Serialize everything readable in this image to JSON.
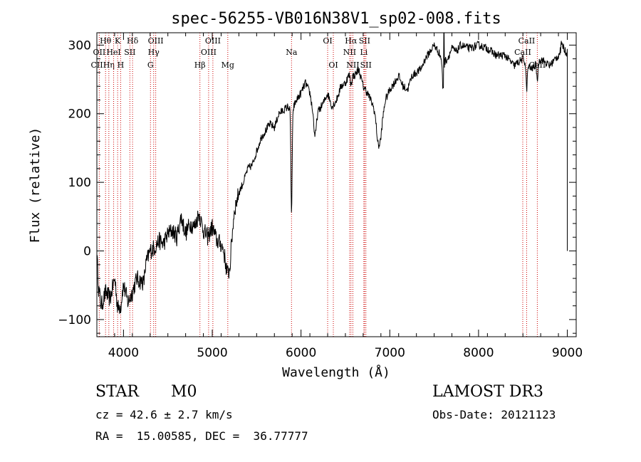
{
  "chart_data": {
    "type": "line",
    "title": "spec-56255-VB016N38V1_sp02-008.fits",
    "xlabel": "Wavelength (Å)",
    "ylabel": "Flux (relative)",
    "xlim": [
      3700,
      9100
    ],
    "ylim": [
      -125,
      318
    ],
    "xticks": [
      4000,
      5000,
      6000,
      7000,
      8000,
      9000
    ],
    "yticks": [
      -100,
      0,
      100,
      200,
      300
    ],
    "grid": false,
    "legend": "none",
    "colors": {
      "spectrum": "#000000",
      "lines": "#cc0000"
    },
    "spectrum_anchors": [
      [
        3700,
        -5
      ],
      [
        3720,
        -55
      ],
      [
        3750,
        -80
      ],
      [
        3800,
        -60
      ],
      [
        3850,
        -70
      ],
      [
        3900,
        -40
      ],
      [
        3950,
        -65
      ],
      [
        4000,
        -50
      ],
      [
        4050,
        -75
      ],
      [
        4100,
        -60
      ],
      [
        4150,
        -40
      ],
      [
        4200,
        -45
      ],
      [
        4250,
        -20
      ],
      [
        4300,
        0
      ],
      [
        4350,
        5
      ],
      [
        4400,
        15
      ],
      [
        4450,
        10
      ],
      [
        4500,
        25
      ],
      [
        4550,
        30
      ],
      [
        4600,
        20
      ],
      [
        4650,
        50
      ],
      [
        4700,
        25
      ],
      [
        4750,
        40
      ],
      [
        4800,
        35
      ],
      [
        4850,
        55
      ],
      [
        4900,
        30
      ],
      [
        4950,
        20
      ],
      [
        5000,
        35
      ],
      [
        5050,
        15
      ],
      [
        5100,
        10
      ],
      [
        5150,
        0
      ],
      [
        5200,
        -5
      ],
      [
        5250,
        60
      ],
      [
        5300,
        85
      ],
      [
        5350,
        100
      ],
      [
        5400,
        120
      ],
      [
        5450,
        125
      ],
      [
        5500,
        145
      ],
      [
        5550,
        165
      ],
      [
        5600,
        175
      ],
      [
        5650,
        185
      ],
      [
        5700,
        180
      ],
      [
        5750,
        200
      ],
      [
        5800,
        205
      ],
      [
        5850,
        210
      ],
      [
        5900,
        205
      ],
      [
        5950,
        220
      ],
      [
        6000,
        230
      ],
      [
        6050,
        245
      ],
      [
        6100,
        230
      ],
      [
        6150,
        190
      ],
      [
        6200,
        205
      ],
      [
        6250,
        215
      ],
      [
        6300,
        230
      ],
      [
        6350,
        210
      ],
      [
        6400,
        220
      ],
      [
        6450,
        240
      ],
      [
        6500,
        245
      ],
      [
        6550,
        260
      ],
      [
        6600,
        255
      ],
      [
        6650,
        265
      ],
      [
        6700,
        240
      ],
      [
        6750,
        230
      ],
      [
        6800,
        215
      ],
      [
        6850,
        200
      ],
      [
        6900,
        175
      ],
      [
        6950,
        220
      ],
      [
        7000,
        235
      ],
      [
        7050,
        245
      ],
      [
        7100,
        255
      ],
      [
        7150,
        240
      ],
      [
        7200,
        235
      ],
      [
        7250,
        255
      ],
      [
        7300,
        260
      ],
      [
        7350,
        265
      ],
      [
        7400,
        280
      ],
      [
        7450,
        290
      ],
      [
        7500,
        300
      ],
      [
        7550,
        290
      ],
      [
        7600,
        275
      ],
      [
        7650,
        280
      ],
      [
        7700,
        295
      ],
      [
        7750,
        290
      ],
      [
        7800,
        300
      ],
      [
        7900,
        295
      ],
      [
        8000,
        300
      ],
      [
        8100,
        295
      ],
      [
        8200,
        285
      ],
      [
        8300,
        285
      ],
      [
        8400,
        270
      ],
      [
        8500,
        280
      ],
      [
        8550,
        270
      ],
      [
        8600,
        265
      ],
      [
        8700,
        280
      ],
      [
        8800,
        270
      ],
      [
        8900,
        285
      ],
      [
        8950,
        300
      ],
      [
        8980,
        290
      ]
    ],
    "absorption_features": [
      [
        3934,
        -25,
        12
      ],
      [
        3968,
        -20,
        12
      ],
      [
        4227,
        -15,
        10
      ],
      [
        5175,
        -30,
        25
      ],
      [
        5893,
        -150,
        7
      ],
      [
        6160,
        -25,
        12
      ],
      [
        6563,
        -15,
        10
      ],
      [
        6870,
        -35,
        20
      ],
      [
        7600,
        -40,
        8
      ],
      [
        8542,
        -35,
        7
      ],
      [
        8662,
        -25,
        7
      ]
    ],
    "spikes": [
      [
        7610,
        320
      ],
      [
        8930,
        302
      ]
    ],
    "end_drop": {
      "x": 9000,
      "y": 0
    },
    "noise_amplitude": 6,
    "line_markers": [
      {
        "label": "Hθ",
        "x": 3798,
        "row": 0
      },
      {
        "label": "OII",
        "x": 3727,
        "row": 1
      },
      {
        "label": "CII",
        "x": 3700,
        "row": 2
      },
      {
        "label": "K",
        "x": 3934,
        "row": 0
      },
      {
        "label": "H",
        "x": 3968,
        "row": 2
      },
      {
        "label": "Hη",
        "x": 3835,
        "row": 2
      },
      {
        "label": "HeI",
        "x": 3889,
        "row": 1
      },
      {
        "label": "SII",
        "x": 4072,
        "row": 1
      },
      {
        "label": "Hδ",
        "x": 4102,
        "row": 0
      },
      {
        "label": "OIII",
        "x": 4363,
        "row": 0
      },
      {
        "label": "Hγ",
        "x": 4340,
        "row": 1
      },
      {
        "label": "G",
        "x": 4304,
        "row": 2
      },
      {
        "label": "Hβ",
        "x": 4861,
        "row": 2
      },
      {
        "label": "OIII",
        "x": 5007,
        "row": 0
      },
      {
        "label": "OIII",
        "x": 4959,
        "row": 1
      },
      {
        "label": "Mg",
        "x": 5175,
        "row": 2
      },
      {
        "label": "Na",
        "x": 5893,
        "row": 1
      },
      {
        "label": "OI",
        "x": 6300,
        "row": 0
      },
      {
        "label": "OI",
        "x": 6364,
        "row": 2
      },
      {
        "label": "Hα",
        "x": 6563,
        "row": 0
      },
      {
        "label": "SII",
        "x": 6716,
        "row": 0
      },
      {
        "label": "NII",
        "x": 6548,
        "row": 1
      },
      {
        "label": "Li",
        "x": 6708,
        "row": 1
      },
      {
        "label": "NII",
        "x": 6584,
        "row": 2
      },
      {
        "label": "SII",
        "x": 6731,
        "row": 2
      },
      {
        "label": "CaII",
        "x": 8542,
        "row": 0
      },
      {
        "label": "CaII",
        "x": 8498,
        "row": 1
      },
      {
        "label": "CaII",
        "x": 8662,
        "row": 2
      }
    ]
  },
  "info": {
    "object_class": "STAR",
    "subclass": "M0",
    "survey": "LAMOST DR3",
    "redshift": "cz = 42.6 ± 2.7 km/s",
    "obs_date": "Obs-Date: 20121123",
    "coords": "RA =  15.00585, DEC =  36.77777"
  }
}
